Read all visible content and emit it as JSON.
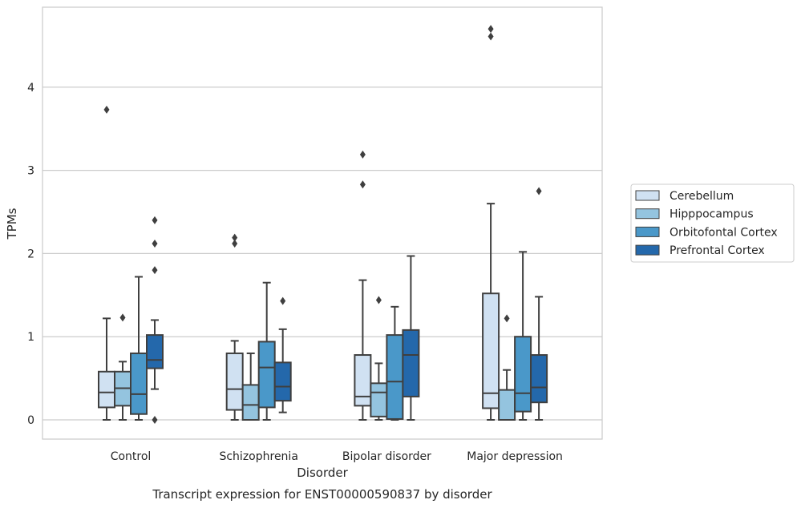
{
  "colors": {
    "series": [
      "#d0e1f2",
      "#94c4df",
      "#4a98c9",
      "#2468ab"
    ],
    "grid": "#cccccc",
    "frame": "#cccccc",
    "box_edge": "#3f3f3f",
    "text": "#262626"
  },
  "caption": "Transcript expression for ENST00000590837 by disorder",
  "chart_data": {
    "type": "box",
    "xlabel": "Disorder",
    "ylabel": "TPMs",
    "categories": [
      "Control",
      "Schizophrenia",
      "Bipolar disorder",
      "Major depression"
    ],
    "y_ticks": [
      0,
      1,
      2,
      3,
      4
    ],
    "ylim": [
      -0.23,
      4.95
    ],
    "grid": "horizontal",
    "legend": {
      "placement": "right",
      "entries": [
        "Cerebellum",
        "Hipppocampus",
        "Orbitofontal Cortex",
        "Prefrontal Cortex"
      ]
    },
    "series": [
      {
        "name": "Cerebellum",
        "boxes": [
          {
            "category": "Control",
            "whisker_low": 0.0,
            "q1": 0.15,
            "median": 0.33,
            "q3": 0.58,
            "whisker_high": 1.22,
            "outliers": [
              3.73
            ]
          },
          {
            "category": "Schizophrenia",
            "whisker_low": 0.0,
            "q1": 0.12,
            "median": 0.37,
            "q3": 0.8,
            "whisker_high": 0.95,
            "outliers": [
              2.12,
              2.19
            ]
          },
          {
            "category": "Bipolar disorder",
            "whisker_low": 0.0,
            "q1": 0.17,
            "median": 0.28,
            "q3": 0.78,
            "whisker_high": 1.68,
            "outliers": [
              2.83,
              3.19
            ]
          },
          {
            "category": "Major depression",
            "whisker_low": 0.0,
            "q1": 0.14,
            "median": 0.32,
            "q3": 1.52,
            "whisker_high": 2.6,
            "outliers": [
              4.61,
              4.7
            ]
          }
        ]
      },
      {
        "name": "Hipppocampus",
        "boxes": [
          {
            "category": "Control",
            "whisker_low": 0.0,
            "q1": 0.17,
            "median": 0.38,
            "q3": 0.58,
            "whisker_high": 0.7,
            "outliers": [
              1.23
            ]
          },
          {
            "category": "Schizophrenia",
            "whisker_low": 0.0,
            "q1": 0.0,
            "median": 0.18,
            "q3": 0.42,
            "whisker_high": 0.8,
            "outliers": []
          },
          {
            "category": "Bipolar disorder",
            "whisker_low": 0.0,
            "q1": 0.04,
            "median": 0.33,
            "q3": 0.44,
            "whisker_high": 0.68,
            "outliers": [
              1.44
            ]
          },
          {
            "category": "Major depression",
            "whisker_low": 0.0,
            "q1": 0.0,
            "median": 0.0,
            "q3": 0.36,
            "whisker_high": 0.6,
            "outliers": [
              1.22
            ]
          }
        ]
      },
      {
        "name": "Orbitofontal Cortex",
        "boxes": [
          {
            "category": "Control",
            "whisker_low": 0.0,
            "q1": 0.07,
            "median": 0.31,
            "q3": 0.8,
            "whisker_high": 1.72,
            "outliers": []
          },
          {
            "category": "Schizophrenia",
            "whisker_low": 0.0,
            "q1": 0.15,
            "median": 0.63,
            "q3": 0.94,
            "whisker_high": 1.65,
            "outliers": []
          },
          {
            "category": "Bipolar disorder",
            "whisker_low": 0.0,
            "q1": 0.01,
            "median": 0.46,
            "q3": 1.02,
            "whisker_high": 1.36,
            "outliers": []
          },
          {
            "category": "Major depression",
            "whisker_low": 0.0,
            "q1": 0.1,
            "median": 0.32,
            "q3": 1.0,
            "whisker_high": 2.02,
            "outliers": []
          }
        ]
      },
      {
        "name": "Prefrontal Cortex",
        "boxes": [
          {
            "category": "Control",
            "whisker_low": 0.37,
            "q1": 0.62,
            "median": 0.72,
            "q3": 1.02,
            "whisker_high": 1.2,
            "outliers": [
              0.0,
              1.8,
              2.12,
              2.4
            ]
          },
          {
            "category": "Schizophrenia",
            "whisker_low": 0.09,
            "q1": 0.23,
            "median": 0.4,
            "q3": 0.69,
            "whisker_high": 1.09,
            "outliers": [
              1.43
            ]
          },
          {
            "category": "Bipolar disorder",
            "whisker_low": 0.0,
            "q1": 0.28,
            "median": 0.78,
            "q3": 1.08,
            "whisker_high": 1.97,
            "outliers": []
          },
          {
            "category": "Major depression",
            "whisker_low": 0.0,
            "q1": 0.21,
            "median": 0.39,
            "q3": 0.78,
            "whisker_high": 1.48,
            "outliers": [
              2.75
            ]
          }
        ]
      }
    ]
  }
}
